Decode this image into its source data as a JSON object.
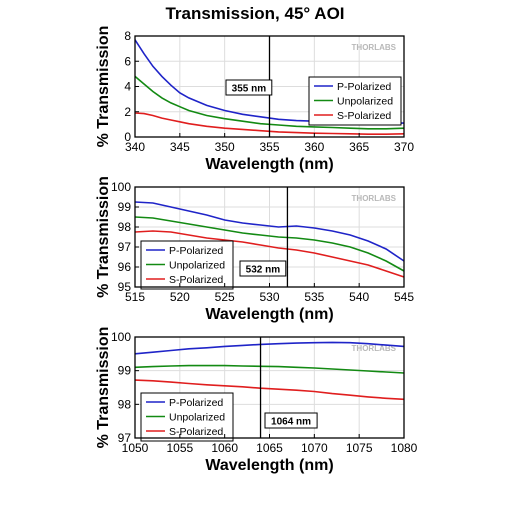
{
  "title": "Transmission, 45° AOI",
  "watermark": "THORLABS",
  "colors": {
    "p": "#1f24c8",
    "unpol": "#138a13",
    "s": "#e01e1e",
    "marker": "#000000"
  },
  "chart_data": [
    {
      "type": "line",
      "xlabel": "Wavelength (nm)",
      "ylabel": "% Transmission",
      "xlim": [
        340,
        370
      ],
      "ylim": [
        0,
        8
      ],
      "xticks": [
        340,
        345,
        350,
        355,
        360,
        365,
        370
      ],
      "yticks": [
        0,
        2,
        4,
        6,
        8
      ],
      "marker_x": 355,
      "marker_label": "355 nm",
      "legend_position": "right",
      "series": [
        {
          "name": "P-Polarized",
          "color": "#1f24c8",
          "x": [
            340,
            341,
            342,
            343,
            344,
            345,
            346,
            348,
            350,
            352,
            354,
            356,
            358,
            360,
            362,
            364,
            366,
            368,
            370
          ],
          "y": [
            7.7,
            6.6,
            5.6,
            4.8,
            4.1,
            3.5,
            3.1,
            2.5,
            2.1,
            1.8,
            1.6,
            1.4,
            1.3,
            1.25,
            1.2,
            1.15,
            1.1,
            1.1,
            1.1
          ]
        },
        {
          "name": "Unpolarized",
          "color": "#138a13",
          "x": [
            340,
            341,
            342,
            343,
            344,
            345,
            346,
            348,
            350,
            352,
            354,
            356,
            358,
            360,
            362,
            364,
            366,
            368,
            370
          ],
          "y": [
            4.8,
            4.2,
            3.6,
            3.1,
            2.7,
            2.4,
            2.1,
            1.7,
            1.45,
            1.25,
            1.05,
            0.95,
            0.85,
            0.8,
            0.75,
            0.7,
            0.65,
            0.65,
            0.7
          ]
        },
        {
          "name": "S-Polarized",
          "color": "#e01e1e",
          "x": [
            340,
            341,
            342,
            343,
            344,
            345,
            346,
            348,
            350,
            352,
            354,
            356,
            358,
            360,
            362,
            364,
            366,
            368,
            370
          ],
          "y": [
            1.9,
            1.85,
            1.7,
            1.5,
            1.35,
            1.2,
            1.05,
            0.85,
            0.7,
            0.6,
            0.5,
            0.4,
            0.35,
            0.3,
            0.28,
            0.25,
            0.22,
            0.22,
            0.25
          ]
        }
      ]
    },
    {
      "type": "line",
      "xlabel": "Wavelength (nm)",
      "ylabel": "% Transmission",
      "xlim": [
        515,
        545
      ],
      "ylim": [
        95,
        100
      ],
      "xticks": [
        515,
        520,
        525,
        530,
        535,
        540,
        545
      ],
      "yticks": [
        95,
        96,
        97,
        98,
        99,
        100
      ],
      "marker_x": 532,
      "marker_label": "532 nm",
      "legend_position": "bottom-left",
      "series": [
        {
          "name": "P-Polarized",
          "color": "#1f24c8",
          "x": [
            515,
            517,
            519,
            521,
            523,
            525,
            527,
            529,
            531,
            533,
            535,
            537,
            539,
            541,
            543,
            545
          ],
          "y": [
            99.25,
            99.2,
            99.0,
            98.8,
            98.6,
            98.35,
            98.2,
            98.1,
            98.0,
            98.05,
            97.95,
            97.8,
            97.6,
            97.3,
            96.9,
            96.3
          ]
        },
        {
          "name": "Unpolarized",
          "color": "#138a13",
          "x": [
            515,
            517,
            519,
            521,
            523,
            525,
            527,
            529,
            531,
            533,
            535,
            537,
            539,
            541,
            543,
            545
          ],
          "y": [
            98.5,
            98.45,
            98.3,
            98.15,
            98.0,
            97.85,
            97.7,
            97.6,
            97.5,
            97.45,
            97.35,
            97.2,
            97.0,
            96.7,
            96.3,
            95.8
          ]
        },
        {
          "name": "S-Polarized",
          "color": "#e01e1e",
          "x": [
            515,
            517,
            519,
            521,
            523,
            525,
            527,
            529,
            531,
            533,
            535,
            537,
            539,
            541,
            543,
            545
          ],
          "y": [
            97.75,
            97.8,
            97.75,
            97.6,
            97.45,
            97.35,
            97.25,
            97.1,
            96.95,
            96.85,
            96.7,
            96.5,
            96.3,
            96.1,
            95.8,
            95.5
          ]
        }
      ]
    },
    {
      "type": "line",
      "xlabel": "Wavelength (nm)",
      "ylabel": "% Transmission",
      "xlim": [
        1050,
        1080
      ],
      "ylim": [
        97,
        100
      ],
      "xticks": [
        1050,
        1055,
        1060,
        1065,
        1070,
        1075,
        1080
      ],
      "yticks": [
        97,
        98,
        99,
        100
      ],
      "marker_x": 1064,
      "marker_label": "1064 nm",
      "legend_position": "bottom-left",
      "series": [
        {
          "name": "P-Polarized",
          "color": "#1f24c8",
          "x": [
            1050,
            1052,
            1054,
            1056,
            1058,
            1060,
            1062,
            1064,
            1066,
            1068,
            1070,
            1072,
            1074,
            1076,
            1078,
            1080
          ],
          "y": [
            99.5,
            99.55,
            99.6,
            99.65,
            99.68,
            99.72,
            99.75,
            99.78,
            99.8,
            99.82,
            99.83,
            99.84,
            99.83,
            99.8,
            99.76,
            99.72
          ]
        },
        {
          "name": "Unpolarized",
          "color": "#138a13",
          "x": [
            1050,
            1052,
            1054,
            1056,
            1058,
            1060,
            1062,
            1064,
            1066,
            1068,
            1070,
            1072,
            1074,
            1076,
            1078,
            1080
          ],
          "y": [
            99.1,
            99.12,
            99.14,
            99.15,
            99.15,
            99.15,
            99.14,
            99.13,
            99.12,
            99.1,
            99.08,
            99.05,
            99.02,
            98.99,
            98.96,
            98.93
          ]
        },
        {
          "name": "S-Polarized",
          "color": "#e01e1e",
          "x": [
            1050,
            1052,
            1054,
            1056,
            1058,
            1060,
            1062,
            1064,
            1066,
            1068,
            1070,
            1072,
            1074,
            1076,
            1078,
            1080
          ],
          "y": [
            98.72,
            98.7,
            98.66,
            98.62,
            98.58,
            98.55,
            98.52,
            98.48,
            98.45,
            98.42,
            98.38,
            98.32,
            98.27,
            98.22,
            98.18,
            98.15
          ]
        }
      ]
    }
  ]
}
